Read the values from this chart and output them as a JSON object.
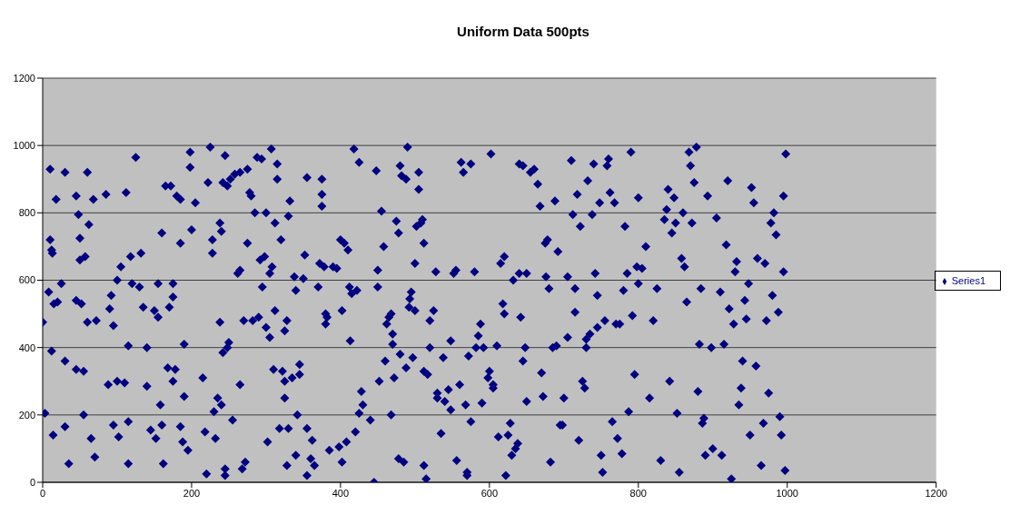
{
  "chart_data": {
    "type": "scatter",
    "title": "Uniform Data 500pts",
    "x": [
      0,
      3,
      8,
      10,
      10,
      12,
      13,
      12,
      14,
      15,
      18,
      20,
      25,
      30,
      30,
      30,
      35,
      45,
      45,
      45,
      48,
      50,
      50,
      52,
      55,
      55,
      57,
      60,
      62,
      60,
      65,
      68,
      70,
      72,
      85,
      88,
      90,
      92,
      95,
      95,
      100,
      100,
      102,
      105,
      110,
      112,
      115,
      115,
      115,
      118,
      120,
      125,
      130,
      132,
      135,
      140,
      140,
      145,
      150,
      152,
      155,
      155,
      158,
      160,
      160,
      162,
      165,
      168,
      170,
      172,
      175,
      175,
      175,
      178,
      180,
      185,
      185,
      185,
      188,
      190,
      190,
      195,
      198,
      198,
      200,
      205,
      215,
      218,
      220,
      222,
      225,
      228,
      228,
      230,
      232,
      235,
      238,
      238,
      240,
      240,
      242,
      242,
      245,
      245,
      245,
      248,
      248,
      250,
      252,
      255,
      258,
      262,
      265,
      265,
      265,
      268,
      270,
      272,
      275,
      275,
      278,
      280,
      282,
      285,
      288,
      290,
      292,
      294,
      295,
      298,
      300,
      300,
      302,
      305,
      305,
      307,
      308,
      310,
      312,
      312,
      315,
      315,
      318,
      320,
      322,
      325,
      325,
      325,
      328,
      328,
      330,
      330,
      332,
      335,
      338,
      340,
      340,
      342,
      345,
      345,
      350,
      352,
      355,
      355,
      355,
      360,
      362,
      365,
      370,
      372,
      375,
      375,
      375,
      378,
      380,
      380,
      382,
      385,
      390,
      395,
      398,
      400,
      402,
      402,
      405,
      408,
      410,
      412,
      413,
      415,
      418,
      420,
      422,
      425,
      425,
      428,
      430,
      440,
      445,
      448,
      450,
      450,
      452,
      455,
      458,
      460,
      462,
      465,
      468,
      468,
      470,
      470,
      472,
      475,
      478,
      478,
      480,
      480,
      482,
      485,
      488,
      488,
      490,
      492,
      493,
      495,
      497,
      500,
      500,
      502,
      505,
      505,
      508,
      510,
      512,
      512,
      512,
      515,
      517,
      520,
      520,
      525,
      528,
      530,
      530,
      535,
      538,
      540,
      545,
      548,
      548,
      552,
      555,
      556,
      560,
      562,
      565,
      568,
      570,
      570,
      572,
      575,
      575,
      580,
      582,
      585,
      588,
      590,
      592,
      598,
      600,
      602,
      605,
      605,
      610,
      612,
      615,
      618,
      620,
      620,
      622,
      625,
      628,
      630,
      632,
      635,
      638,
      640,
      640,
      642,
      645,
      645,
      648,
      650,
      650,
      655,
      660,
      665,
      668,
      670,
      672,
      675,
      676,
      678,
      680,
      682,
      685,
      688,
      690,
      692,
      695,
      698,
      700,
      705,
      705,
      710,
      712,
      715,
      715,
      718,
      720,
      722,
      725,
      728,
      730,
      730,
      732,
      735,
      738,
      740,
      742,
      745,
      745,
      748,
      750,
      752,
      755,
      758,
      760,
      762,
      765,
      768,
      770,
      772,
      775,
      778,
      780,
      782,
      785,
      787,
      790,
      792,
      795,
      798,
      800,
      800,
      805,
      810,
      815,
      820,
      825,
      830,
      835,
      838,
      840,
      842,
      845,
      848,
      850,
      852,
      855,
      858,
      860,
      862,
      865,
      868,
      870,
      872,
      875,
      878,
      880,
      882,
      884,
      886,
      888,
      890,
      893,
      898,
      900,
      905,
      910,
      912,
      915,
      918,
      920,
      922,
      925,
      928,
      930,
      932,
      935,
      938,
      940,
      943,
      945,
      948,
      950,
      952,
      955,
      958,
      960,
      965,
      968,
      970,
      972,
      975,
      978,
      980,
      982,
      985,
      988,
      990,
      992,
      995,
      995,
      997,
      998
    ],
    "series": [
      {
        "name": "Series1",
        "color": "#000080",
        "values": [
          475,
          205,
          565,
          930,
          720,
          690,
          680,
          390,
          140,
          530,
          840,
          535,
          590,
          920,
          165,
          360,
          55,
          850,
          540,
          335,
          795,
          725,
          660,
          530,
          200,
          330,
          670,
          920,
          765,
          475,
          130,
          840,
          75,
          480,
          855,
          290,
          515,
          555,
          170,
          465,
          600,
          300,
          135,
          640,
          295,
          860,
          405,
          180,
          55,
          670,
          590,
          965,
          580,
          680,
          520,
          285,
          400,
          155,
          510,
          130,
          590,
          490,
          230,
          740,
          170,
          55,
          880,
          340,
          520,
          880,
          550,
          590,
          300,
          335,
          850,
          840,
          165,
          710,
          120,
          255,
          410,
          95,
          980,
          935,
          750,
          830,
          310,
          150,
          25,
          890,
          995,
          680,
          720,
          210,
          130,
          250,
          475,
          770,
          230,
          745,
          890,
          385,
          40,
          20,
          970,
          880,
          400,
          415,
          900,
          185,
          915,
          620,
          920,
          630,
          290,
          40,
          480,
          60,
          930,
          710,
          860,
          850,
          480,
          800,
          965,
          490,
          660,
          960,
          580,
          670,
          800,
          460,
          120,
          430,
          620,
          990,
          640,
          335,
          770,
          510,
          945,
          900,
          160,
          720,
          330,
          300,
          250,
          450,
          480,
          50,
          790,
          160,
          835,
          310,
          610,
          570,
          80,
          200,
          350,
          320,
          605,
          675,
          905,
          20,
          160,
          70,
          125,
          50,
          580,
          650,
          900,
          855,
          820,
          640,
          470,
          500,
          490,
          95,
          640,
          635,
          105,
          720,
          510,
          60,
          710,
          120,
          690,
          580,
          420,
          560,
          990,
          150,
          570,
          205,
          950,
          270,
          230,
          185,
          0,
          925,
          580,
          630,
          300,
          805,
          700,
          360,
          470,
          490,
          500,
          200,
          410,
          440,
          310,
          775,
          740,
          70,
          380,
          940,
          910,
          60,
          340,
          900,
          995,
          520,
          545,
          565,
          370,
          510,
          650,
          760,
          920,
          870,
          770,
          780,
          330,
          710,
          50,
          10,
          320,
          480,
          400,
          510,
          625,
          265,
          250,
          145,
          370,
          240,
          275,
          420,
          215,
          620,
          630,
          65,
          290,
          950,
          920,
          230,
          20,
          30,
          375,
          945,
          180,
          625,
          400,
          435,
          470,
          235,
          400,
          310,
          330,
          975,
          290,
          280,
          405,
          135,
          650,
          530,
          670,
          500,
          20,
          140,
          175,
          80,
          600,
          100,
          115,
          620,
          945,
          490,
          940,
          360,
          400,
          240,
          620,
          920,
          930,
          885,
          820,
          325,
          255,
          710,
          610,
          720,
          575,
          60,
          400,
          835,
          405,
          685,
          170,
          170,
          250,
          610,
          430,
          955,
          795,
          575,
          505,
          855,
          125,
          760,
          300,
          280,
          400,
          425,
          895,
          440,
          795,
          945,
          620,
          555,
          460,
          830,
          80,
          30,
          480,
          940,
          960,
          860,
          180,
          830,
          470,
          130,
          470,
          85,
          570,
          760,
          620,
          210,
          980,
          495,
          320,
          640,
          845,
          590,
          635,
          700,
          250,
          480,
          575,
          65,
          780,
          810,
          870,
          300,
          740,
          845,
          770,
          205,
          30,
          665,
          800,
          640,
          535,
          980,
          940,
          770,
          890,
          995,
          270,
          410,
          575,
          175,
          190,
          80,
          850,
          400,
          100,
          785,
          565,
          80,
          410,
          705,
          895,
          515,
          10,
          470,
          625,
          655,
          230,
          280,
          360,
          540,
          485,
          590,
          140,
          875,
          830,
          345,
          665,
          50,
          175,
          650,
          480,
          265,
          770,
          555,
          800,
          735,
          505,
          195,
          140,
          625,
          850,
          35,
          975
        ]
      }
    ],
    "xlim": [
      0,
      1200
    ],
    "xticks": [
      0,
      200,
      400,
      600,
      800,
      1000,
      1200
    ],
    "ylim": [
      0,
      1200
    ],
    "yticks": [
      0,
      200,
      400,
      600,
      800,
      1000,
      1200
    ],
    "grid": "y",
    "legend": "right",
    "marker": "diamond"
  }
}
